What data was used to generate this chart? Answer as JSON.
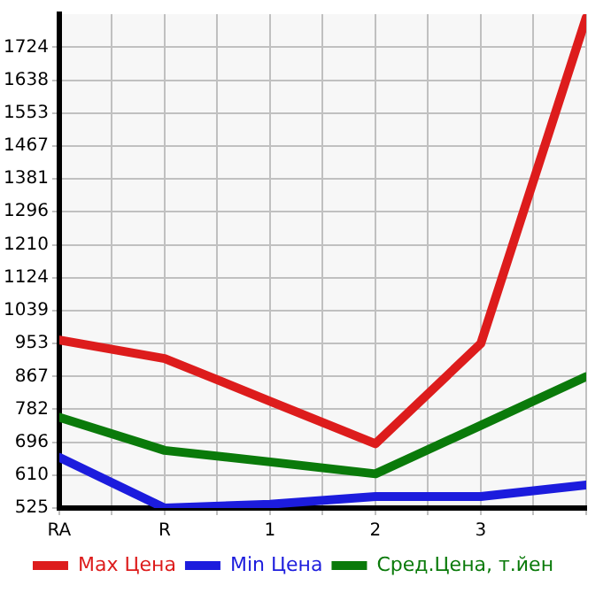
{
  "chart_data": {
    "type": "line",
    "categories": [
      "RA",
      "R",
      "1",
      "2",
      "3",
      null
    ],
    "series": [
      {
        "name": "Max Цена",
        "color": "#dd1c1c",
        "values": [
          962,
          914,
          803,
          692,
          953,
          1801
        ]
      },
      {
        "name": "Min Цена",
        "color": "#1c1cdd",
        "values": [
          657,
          525,
          535,
          555,
          555,
          585
        ]
      },
      {
        "name": "Сред.Цена, т.йен",
        "color": "#0a7a0a",
        "values": [
          761,
          675,
          645,
          614,
          740,
          867
        ]
      }
    ],
    "ylim": [
      525,
      1810
    ],
    "yticks": [
      525,
      610,
      696,
      782,
      867,
      953,
      1039,
      1124,
      1210,
      1296,
      1381,
      1467,
      1553,
      1638,
      1724
    ],
    "grid": true,
    "legend": "bottom",
    "marker": "none",
    "line_style": "solid"
  }
}
